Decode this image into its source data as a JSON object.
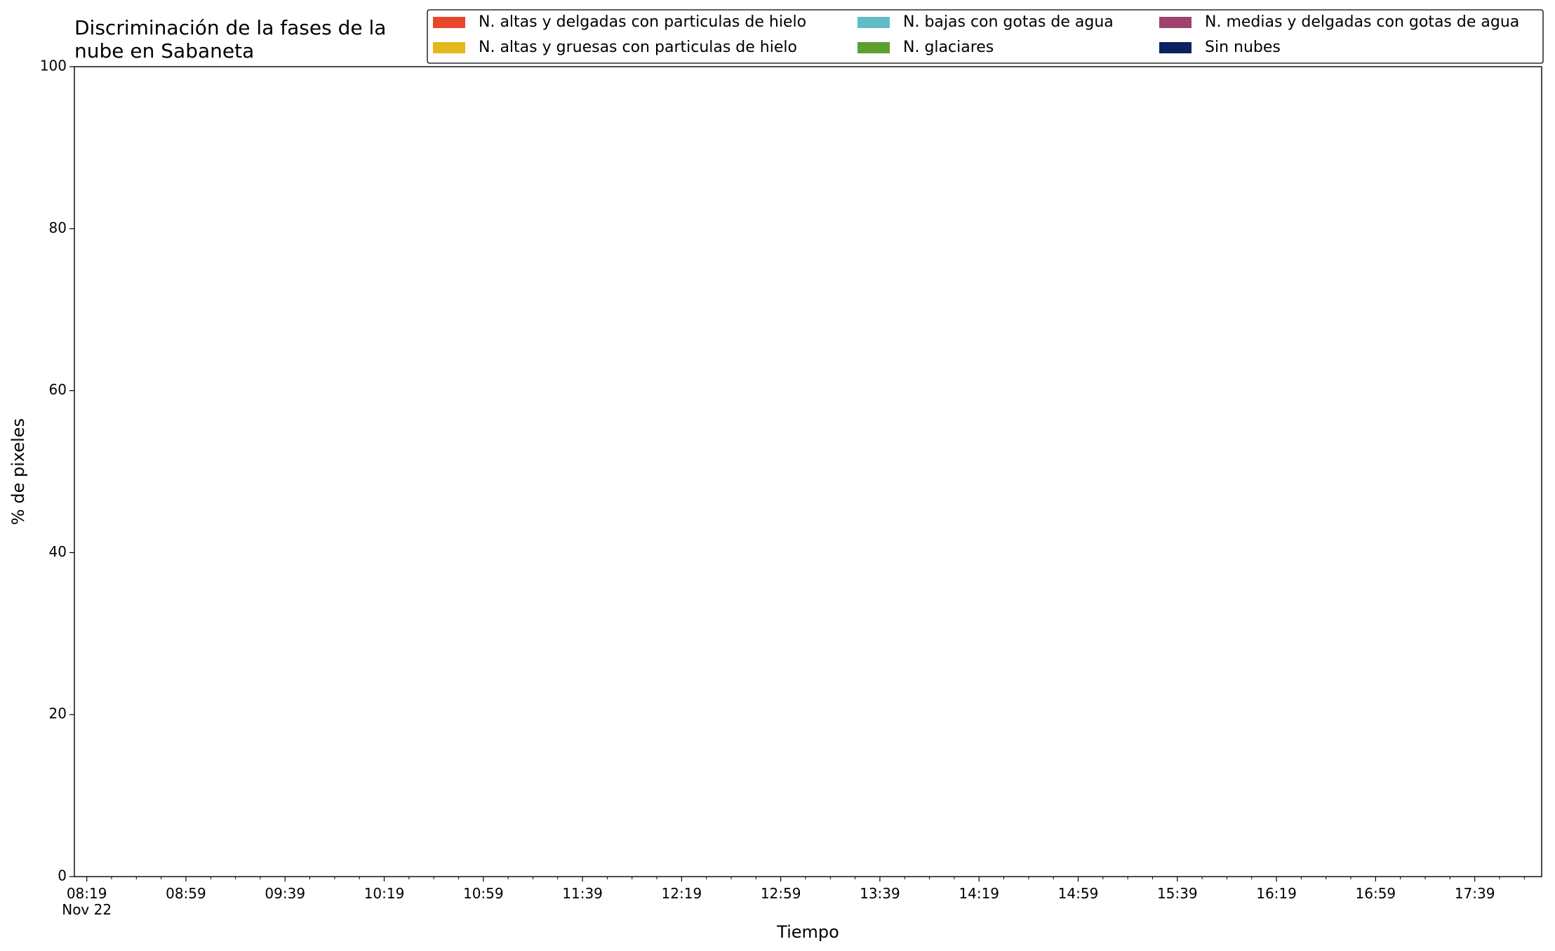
{
  "chart_data": {
    "type": "stacked-area",
    "title": "Discriminación de la fases de la\nnube en Sabaneta",
    "xlabel": "Tiempo",
    "ylabel": "% de pixeles",
    "x": [],
    "series": [
      {
        "name": "N. altas y delgadas con particulas de hielo",
        "color": "#e8472b",
        "values": []
      },
      {
        "name": "N. altas y gruesas con particulas de hielo",
        "color": "#e4b81c",
        "values": []
      },
      {
        "name": "N. bajas con gotas de agua",
        "color": "#62bcc8",
        "values": []
      },
      {
        "name": "N. glaciares",
        "color": "#5e9f2d",
        "values": []
      },
      {
        "name": "N. medias y delgadas con gotas de agua",
        "color": "#a0416f",
        "values": []
      },
      {
        "name": "Sin nubes",
        "color": "#0b2261",
        "values": []
      }
    ],
    "xlim": [
      494,
      1086
    ],
    "xticks": [
      {
        "value": 499,
        "label": "08:19\nNov 22"
      },
      {
        "value": 539,
        "label": "08:59"
      },
      {
        "value": 579,
        "label": "09:39"
      },
      {
        "value": 619,
        "label": "10:19"
      },
      {
        "value": 659,
        "label": "10:59"
      },
      {
        "value": 699,
        "label": "11:39"
      },
      {
        "value": 739,
        "label": "12:19"
      },
      {
        "value": 779,
        "label": "12:59"
      },
      {
        "value": 819,
        "label": "13:39"
      },
      {
        "value": 859,
        "label": "14:19"
      },
      {
        "value": 899,
        "label": "14:59"
      },
      {
        "value": 939,
        "label": "15:39"
      },
      {
        "value": 979,
        "label": "16:19"
      },
      {
        "value": 1019,
        "label": "16:59"
      },
      {
        "value": 1059,
        "label": "17:39"
      }
    ],
    "xminorticks": [
      509,
      519,
      529,
      549,
      559,
      569,
      589,
      599,
      609,
      629,
      639,
      649,
      669,
      679,
      689,
      709,
      719,
      729,
      749,
      759,
      769,
      789,
      799,
      809,
      829,
      839,
      849,
      869,
      879,
      889,
      909,
      919,
      929,
      949,
      959,
      969,
      989,
      999,
      1009,
      1029,
      1039,
      1049,
      1069,
      1079
    ],
    "ylim": [
      0,
      100
    ],
    "yticks": [
      0,
      20,
      40,
      60,
      80,
      100
    ],
    "legend": "upper right",
    "grid": false
  }
}
